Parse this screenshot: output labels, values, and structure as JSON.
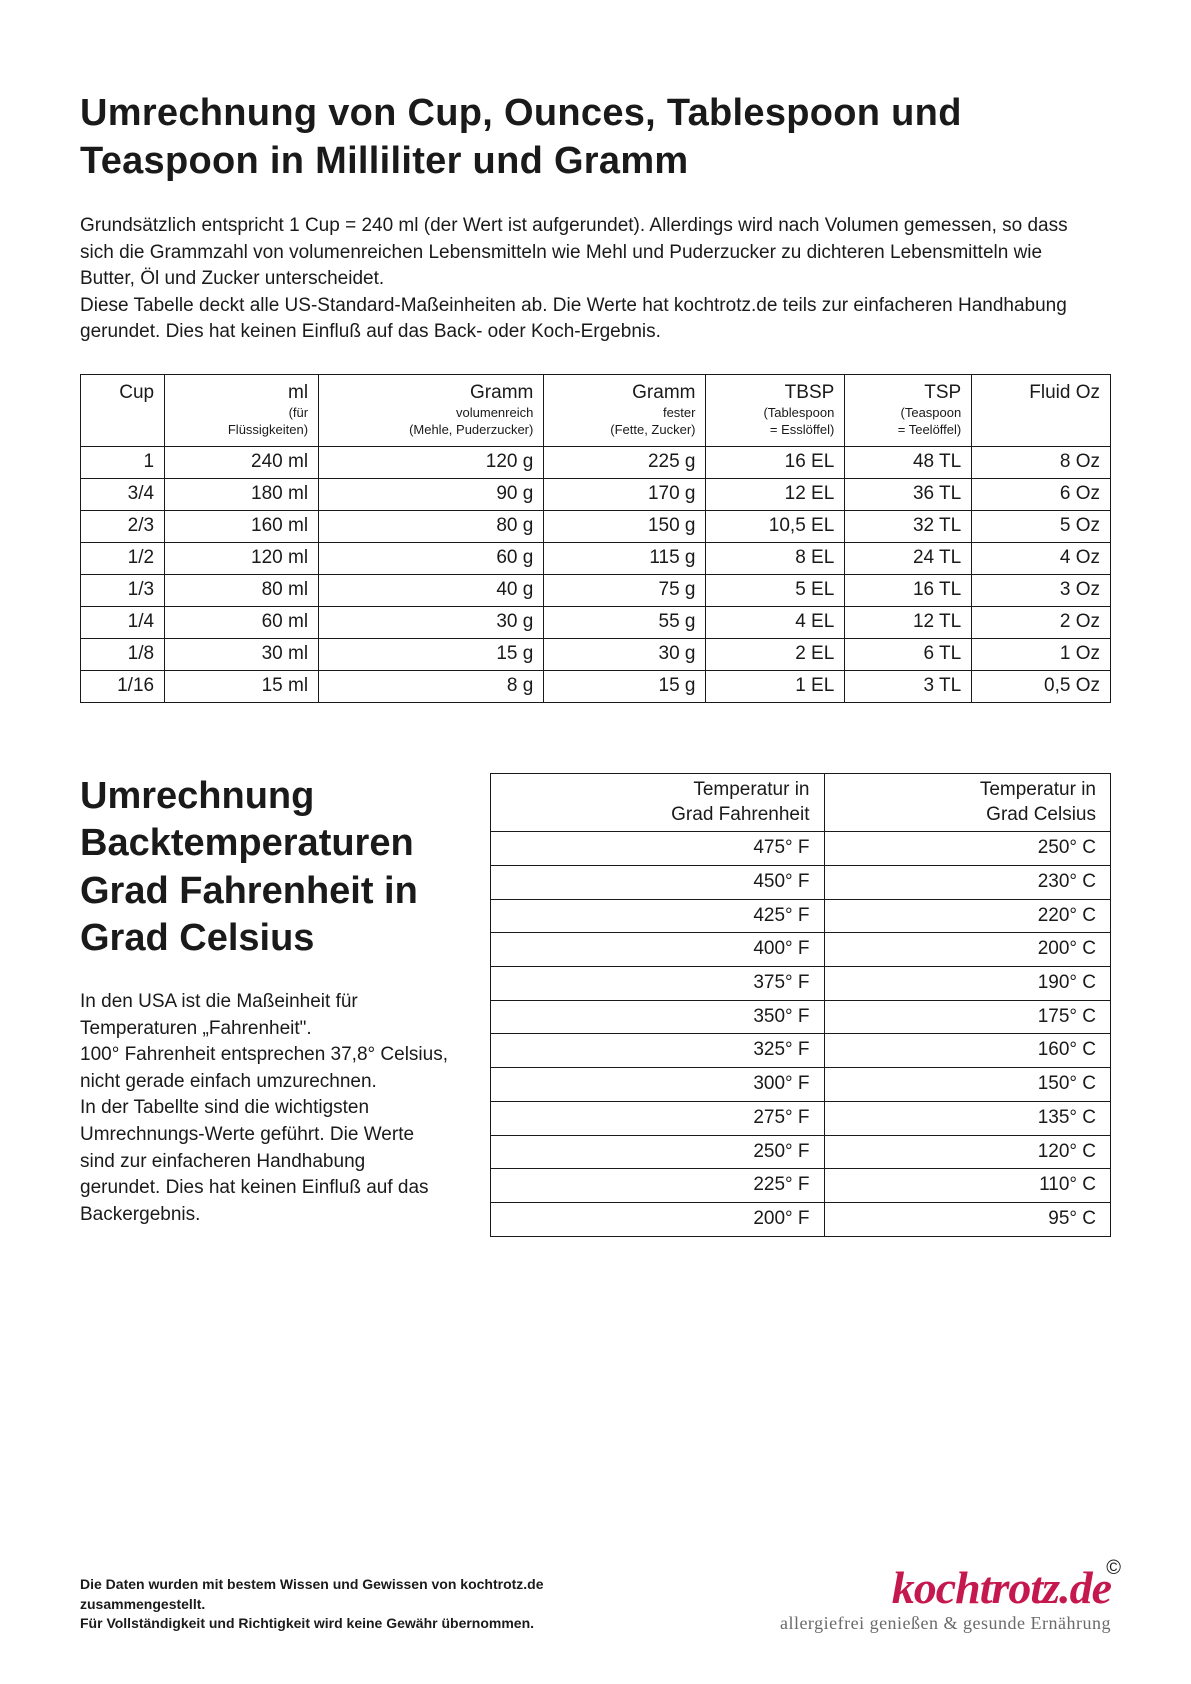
{
  "title": "Umrechnung von Cup, Ounces, Tablespoon und Teaspoon in Milliliter und Gramm",
  "intro": "Grundsätzlich entspricht 1 Cup = 240 ml (der Wert ist aufgerundet). Allerdings wird nach Volumen gemessen, so dass sich die Grammzahl von volumenreichen Lebensmitteln wie Mehl und Puderzucker zu dichteren Lebensmitteln wie Butter, Öl und Zucker unterscheidet.\nDiese Tabelle deckt alle US-Standard-Maßeinheiten ab. Die Werte hat kochtrotz.de teils zur einfacheren Handhabung gerundet. Dies hat keinen Einfluß auf das Back- oder Koch-Ergebnis.",
  "conversion_table": {
    "columns": [
      {
        "main": "Cup",
        "sub": ""
      },
      {
        "main": "ml",
        "sub": "(für\nFlüssigkeiten)"
      },
      {
        "main": "Gramm",
        "sub": "volumenreich\n(Mehle, Puderzucker)"
      },
      {
        "main": "Gramm",
        "sub": "fester\n(Fette, Zucker)"
      },
      {
        "main": "TBSP",
        "sub": "(Tablespoon\n= Esslöffel)"
      },
      {
        "main": "TSP",
        "sub": "(Teaspoon\n= Teelöffel)"
      },
      {
        "main": "Fluid Oz",
        "sub": ""
      }
    ],
    "rows": [
      [
        "1",
        "240 ml",
        "120 g",
        "225 g",
        "16 EL",
        "48 TL",
        "8 Oz"
      ],
      [
        "3/4",
        "180 ml",
        "90 g",
        "170 g",
        "12 EL",
        "36 TL",
        "6 Oz"
      ],
      [
        "2/3",
        "160 ml",
        "80 g",
        "150 g",
        "10,5 EL",
        "32 TL",
        "5 Oz"
      ],
      [
        "1/2",
        "120 ml",
        "60 g",
        "115 g",
        "8 EL",
        "24 TL",
        "4 Oz"
      ],
      [
        "1/3",
        "80 ml",
        "40 g",
        "75 g",
        "5 EL",
        "16 TL",
        "3 Oz"
      ],
      [
        "1/4",
        "60 ml",
        "30 g",
        "55 g",
        "4 EL",
        "12 TL",
        "2 Oz"
      ],
      [
        "1/8",
        "30 ml",
        "15 g",
        "30 g",
        "2 EL",
        "6 TL",
        "1 Oz"
      ],
      [
        "1/16",
        "15 ml",
        "8 g",
        "15 g",
        "1 EL",
        "3 TL",
        "0,5 Oz"
      ]
    ]
  },
  "temp_section": {
    "heading": "Umrechnung Backtemperaturen Grad Fahrenheit in Grad Celsius",
    "body": "In den USA ist die Maßeinheit für Temperaturen „Fahrenheit\".\n100° Fahrenheit entsprechen 37,8° Celsius, nicht gerade einfach umzurechnen.\nIn der Tabellte sind die wichtigsten Umrechnungs-Werte geführt. Die Werte sind zur einfacheren Handhabung gerundet. Dies hat keinen Einfluß auf das Backergebnis."
  },
  "temp_table": {
    "columns": [
      "Temperatur in\nGrad Fahrenheit",
      "Temperatur in\nGrad Celsius"
    ],
    "rows": [
      [
        "475° F",
        "250° C"
      ],
      [
        "450° F",
        "230° C"
      ],
      [
        "425° F",
        "220° C"
      ],
      [
        "400° F",
        "200° C"
      ],
      [
        "375° F",
        "190° C"
      ],
      [
        "350° F",
        "175° C"
      ],
      [
        "325° F",
        "160° C"
      ],
      [
        "300° F",
        "150° C"
      ],
      [
        "275° F",
        "135° C"
      ],
      [
        "250° F",
        "120° C"
      ],
      [
        "225° F",
        "110° C"
      ],
      [
        "200° F",
        "95° C"
      ]
    ]
  },
  "footer": {
    "disclaimer": "Die Daten wurden mit bestem Wissen und Gewissen von kochtrotz.de zusammengestellt.\nFür Vollständigkeit und Richtigkeit wird keine Gewähr übernommen.",
    "brand": "kochtrotz.de",
    "tagline": "allergiefrei genießen & gesunde Ernährung",
    "copy": "©"
  },
  "colors": {
    "text": "#1a1a1a",
    "border": "#1a1a1a",
    "brand": "#c5184f",
    "tagline": "#6a6a6a",
    "background": "#ffffff"
  }
}
